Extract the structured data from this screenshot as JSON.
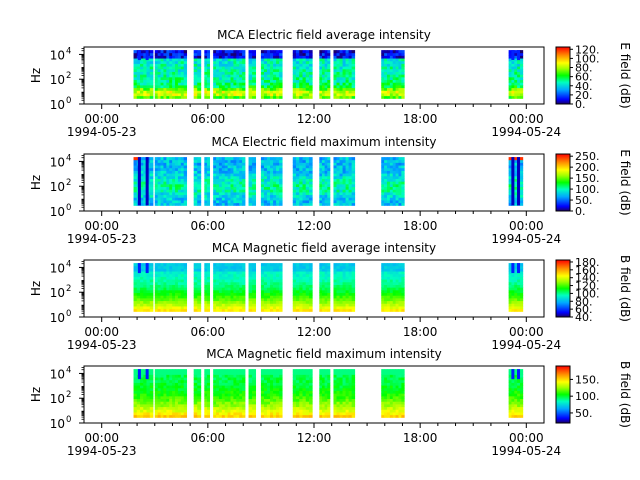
{
  "chart_data": [
    {
      "type": "heatmap",
      "title": "MCA  Electric field average intensity",
      "ylabel": "Hz",
      "xlabel": "",
      "colorbar_label": "E field (dB)",
      "colorbar_ticks": [
        "0.",
        "20.",
        "40.",
        "60.",
        "80.",
        "100.",
        "120."
      ],
      "colorbar_range": [
        0,
        125
      ],
      "x_ticks": [
        "00:00",
        "06:00",
        "12:00",
        "18:00",
        "00:00"
      ],
      "x_tick_dates": [
        "1994-05-23",
        "",
        "",
        "",
        "1994-05-24"
      ],
      "y_ticks": [
        "10^0",
        "10^2",
        "10^4"
      ],
      "ylim_log10": [
        0,
        4.6
      ],
      "profile": "e_avg"
    },
    {
      "type": "heatmap",
      "title": "MCA  Electric field maximum intensity",
      "ylabel": "Hz",
      "xlabel": "",
      "colorbar_label": "E field (dB)",
      "colorbar_ticks": [
        "0.",
        "50.",
        "100.",
        "150.",
        "200.",
        "250."
      ],
      "colorbar_range": [
        0,
        260
      ],
      "x_ticks": [
        "00:00",
        "06:00",
        "12:00",
        "18:00",
        "00:00"
      ],
      "x_tick_dates": [
        "1994-05-23",
        "",
        "",
        "",
        "1994-05-24"
      ],
      "y_ticks": [
        "10^0",
        "10^2",
        "10^4"
      ],
      "ylim_log10": [
        0,
        4.6
      ],
      "profile": "e_max"
    },
    {
      "type": "heatmap",
      "title": "MCA  Magnetic field average intensity",
      "ylabel": "Hz",
      "xlabel": "",
      "colorbar_label": "B field (dB)",
      "colorbar_ticks": [
        "40.",
        "60.",
        "80.",
        "100.",
        "120.",
        "140.",
        "160.",
        "180."
      ],
      "colorbar_range": [
        40,
        185
      ],
      "x_ticks": [
        "00:00",
        "06:00",
        "12:00",
        "18:00",
        "00:00"
      ],
      "x_tick_dates": [
        "1994-05-23",
        "",
        "",
        "",
        "1994-05-24"
      ],
      "y_ticks": [
        "10^0",
        "10^2",
        "10^4"
      ],
      "ylim_log10": [
        0,
        4.6
      ],
      "profile": "b_avg"
    },
    {
      "type": "heatmap",
      "title": "MCA  Magnetic field maximum intensity",
      "ylabel": "Hz",
      "xlabel": "",
      "colorbar_label": "B field (dB)",
      "colorbar_ticks": [
        "50.",
        "100.",
        "150."
      ],
      "colorbar_range": [
        20,
        190
      ],
      "x_ticks": [
        "00:00",
        "06:00",
        "12:00",
        "18:00",
        "00:00"
      ],
      "x_tick_dates": [
        "1994-05-23",
        "",
        "",
        "",
        "1994-05-24"
      ],
      "y_ticks": [
        "10^0",
        "10^2",
        "10^4"
      ],
      "ylim_log10": [
        0,
        4.6
      ],
      "profile": "b_max"
    }
  ],
  "xlim_hours": [
    -1,
    25
  ],
  "data_intervals_hours": [
    [
      1.8,
      2.9
    ],
    [
      3.0,
      4.8
    ],
    [
      5.2,
      5.6
    ],
    [
      5.8,
      6.1
    ],
    [
      6.3,
      8.1
    ],
    [
      8.3,
      8.7
    ],
    [
      9.0,
      10.2
    ],
    [
      10.8,
      11.9
    ],
    [
      12.3,
      12.9
    ],
    [
      13.1,
      14.3
    ],
    [
      15.8,
      17.1
    ],
    [
      23.0,
      23.8
    ]
  ],
  "colors": {
    "axis": "#000000",
    "background": "#ffffff"
  }
}
